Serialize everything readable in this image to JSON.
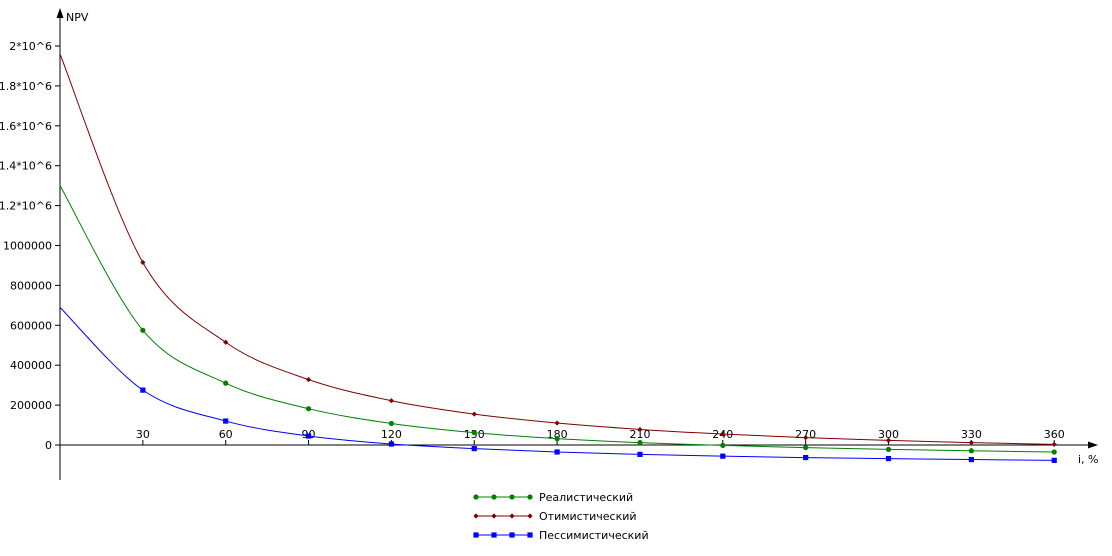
{
  "chart_data": {
    "type": "line",
    "title": "",
    "xlabel": "i, %",
    "ylabel": "NPV",
    "xlim": [
      -1,
      370
    ],
    "ylim": [
      -180000,
      2030000
    ],
    "x_ticks": [
      30,
      60,
      90,
      120,
      150,
      180,
      210,
      240,
      270,
      300,
      330,
      360
    ],
    "y_ticks": [
      {
        "value": 0,
        "label": "0"
      },
      {
        "value": 200000,
        "label": "200000"
      },
      {
        "value": 400000,
        "label": "400000"
      },
      {
        "value": 600000,
        "label": "600000"
      },
      {
        "value": 800000,
        "label": "800000"
      },
      {
        "value": 1000000,
        "label": "1000000"
      },
      {
        "value": 1200000,
        "label": "1.2*10^6"
      },
      {
        "value": 1400000,
        "label": "1.4*10^6"
      },
      {
        "value": 1600000,
        "label": "1.6*10^6"
      },
      {
        "value": 1800000,
        "label": "1.8*10^6"
      },
      {
        "value": 2000000,
        "label": "2*10^6"
      }
    ],
    "grid": false,
    "legend_position": "bottom-center",
    "series": [
      {
        "name": "Реалистический",
        "color": "#008000",
        "marker": "circle",
        "x": [
          30,
          60,
          90,
          120,
          150,
          180,
          210,
          240,
          270,
          300,
          330,
          360
        ],
        "y": [
          575000,
          310000,
          182000,
          108000,
          62000,
          32000,
          12000,
          -2000,
          -13000,
          -22000,
          -29000,
          -35000
        ],
        "curve_start": [
          0,
          1300000
        ]
      },
      {
        "name": "Отимистический",
        "color": "#800000",
        "marker": "diamond",
        "x": [
          30,
          60,
          90,
          120,
          150,
          180,
          210,
          240,
          270,
          300,
          330,
          360
        ],
        "y": [
          915000,
          515000,
          328000,
          222000,
          155000,
          110000,
          78000,
          55000,
          37000,
          23000,
          12000,
          3000
        ],
        "curve_start": [
          0,
          1960000
        ]
      },
      {
        "name": "Пессимистический",
        "color": "#0000ff",
        "marker": "square",
        "x": [
          30,
          60,
          90,
          120,
          150,
          180,
          210,
          240,
          270,
          300,
          330,
          360
        ],
        "y": [
          275000,
          120000,
          45000,
          5000,
          -18000,
          -35000,
          -47000,
          -56000,
          -63000,
          -68000,
          -73000,
          -77000
        ],
        "curve_start": [
          0,
          690000
        ]
      }
    ]
  }
}
